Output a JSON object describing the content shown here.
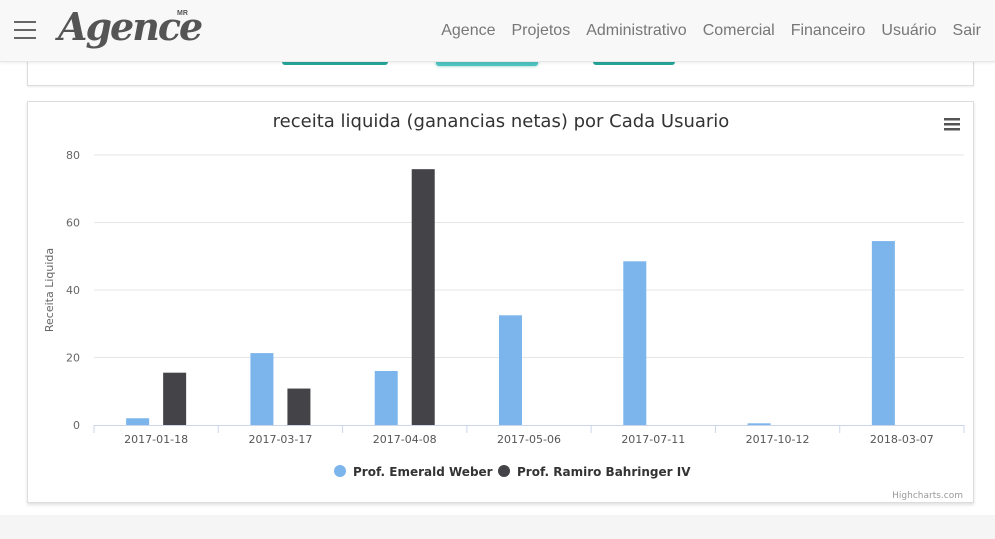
{
  "nav": {
    "brand": "Agence",
    "brand_sup": "MR",
    "items": [
      "Agence",
      "Projetos",
      "Administrativo",
      "Comercial",
      "Financeiro",
      "Usuário",
      "Sair"
    ]
  },
  "chart_data": {
    "type": "bar",
    "title": "receita liquida (ganancias netas) por Cada Usuario",
    "xlabel": "",
    "ylabel": "Receita Liquida",
    "categories": [
      "2017-01-18",
      "2017-03-17",
      "2017-04-08",
      "2017-05-06",
      "2017-07-11",
      "2017-10-12",
      "2018-03-07"
    ],
    "ylim": [
      0,
      80
    ],
    "yticks": [
      0,
      20,
      40,
      60,
      80
    ],
    "grid": true,
    "legend_position": "bottom-center",
    "series": [
      {
        "name": "Prof. Emerald Weber",
        "color": "#7cb5ec",
        "values": [
          2,
          21.3,
          16,
          32.5,
          48.5,
          0.5,
          54.5
        ]
      },
      {
        "name": "Prof. Ramiro Bahringer IV",
        "color": "#434348",
        "values": [
          15.5,
          10.8,
          75.8,
          null,
          null,
          null,
          null
        ]
      }
    ],
    "credits": "Highcharts.com"
  }
}
